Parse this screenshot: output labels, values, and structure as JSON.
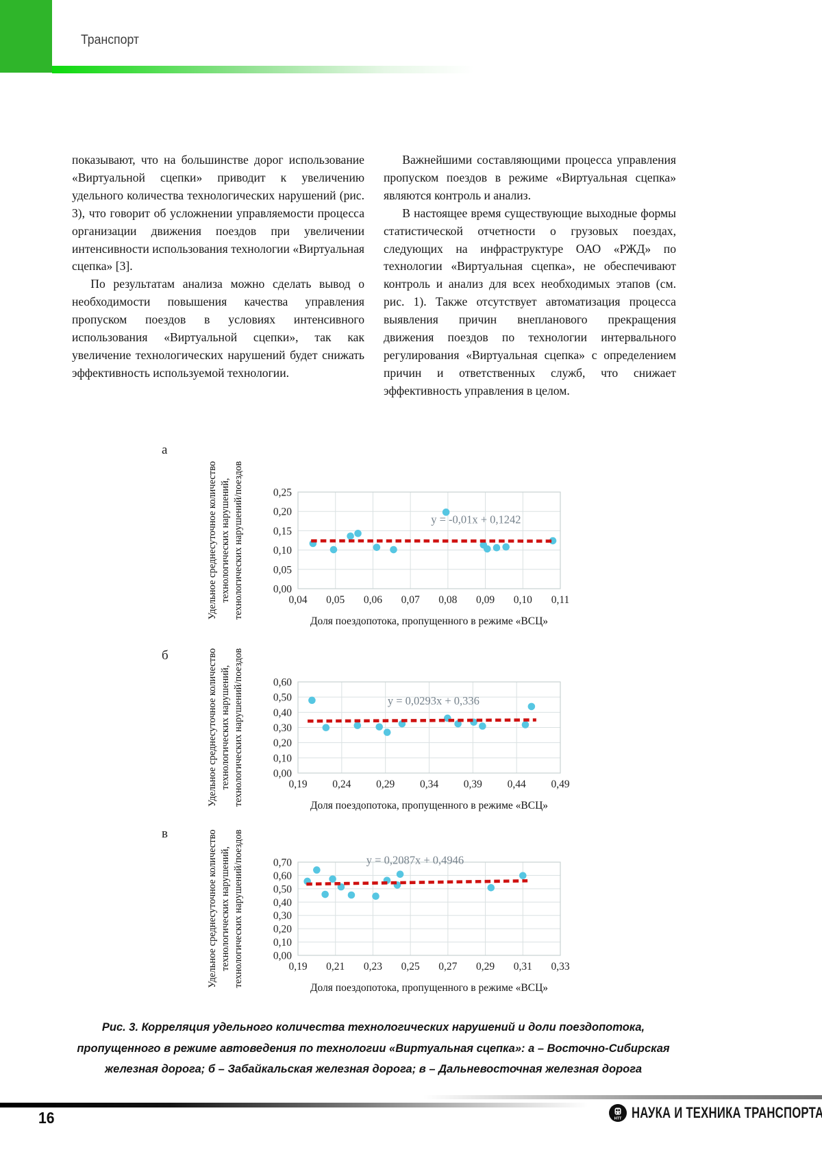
{
  "header": {
    "section_label": "Транспорт"
  },
  "article": {
    "left_paragraphs": [
      "показывают, что на большинстве дорог использование «Виртуальной сцепки» приводит к увеличению удельного количества технологических нарушений (рис. 3), что говорит об усложнении управляемости процесса организации движения поездов при увеличении интенсивности использования технологии «Виртуальная сцепка» [3].",
      "По результатам анализа можно сделать вывод о необходимости повышения качества управления пропуском поездов в условиях интенсивного использования «Виртуальной сцепки», так как увеличение технологических нарушений будет снижать эффективность используемой технологии."
    ],
    "right_paragraphs": [
      "Важнейшими составляющими процесса управления пропуском поездов в режиме «Виртуальная сцепка» являются контроль и анализ.",
      "В настоящее время существующие выходные формы статистической отчетности о грузовых поездах, следующих на инфраструктуре ОАО «РЖД» по технологии «Виртуальная сцепка», не обеспечивают контроль и анализ для всех необходимых этапов (см. рис. 1). Также отсутствует автоматизация процесса выявления причин внепланового прекращения движения поездов по технологии интервального регулирования «Виртуальная сцепка» с определением причин и ответственных служб, что снижает эффективность управления в целом."
    ]
  },
  "figure": {
    "caption": "Рис. 3. Корреляция удельного количества технологических нарушений и доли поездопотока, пропущенного в режиме автоведения по технологии «Виртуальная сцепка»: а – Восточно-Сибирская железная дорога; б – Забайкальская железная дорога; в – Дальневосточная железная дорога",
    "colors": {
      "point": "#56c6e2",
      "trend": "#cf1110",
      "grid": "#dae1e2",
      "border": "#c8d2d3",
      "equation_text": "#76828c",
      "tick_text": "#222222"
    }
  },
  "chart_data": [
    {
      "type": "scatter",
      "panel": "а",
      "equation": "y = -0,01x + 0,1242",
      "xlabel": "Доля поездопотока, пропущенного в режиме «ВСЦ»",
      "ylabel_lines": [
        "Удельное среднесуточное количество",
        "технологических нарушений,",
        "технологических нарушений/поездов"
      ],
      "xlim": [
        0.04,
        0.11
      ],
      "xtick_step": 0.01,
      "ylim": [
        0,
        0.25
      ],
      "ytick_step": 0.05,
      "points": [
        [
          0.044,
          0.117
        ],
        [
          0.0495,
          0.101
        ],
        [
          0.054,
          0.136
        ],
        [
          0.056,
          0.143
        ],
        [
          0.061,
          0.107
        ],
        [
          0.0655,
          0.101
        ],
        [
          0.0795,
          0.198
        ],
        [
          0.0895,
          0.113
        ],
        [
          0.0905,
          0.103
        ],
        [
          0.093,
          0.106
        ],
        [
          0.0955,
          0.108
        ],
        [
          0.108,
          0.124
        ]
      ],
      "trend": {
        "x": [
          0.0435,
          0.1085
        ],
        "y": [
          0.1238,
          0.1231
        ]
      },
      "equation_anchor": [
        0.0875,
        0.169
      ],
      "legend": "none",
      "grid": "on"
    },
    {
      "type": "scatter",
      "panel": "б",
      "equation": "y = 0,0293x + 0,336",
      "xlabel": "Доля поездопотока, пропущенного в режиме «ВСЦ»",
      "ylabel_lines": [
        "Удельное среднесуточное количество",
        "технологических нарушений,",
        "технологических нарушений/поездов"
      ],
      "xlim": [
        0.19,
        0.49
      ],
      "xtick_step": 0.05,
      "ylim": [
        0,
        0.6
      ],
      "ytick_step": 0.1,
      "points": [
        [
          0.206,
          0.479
        ],
        [
          0.222,
          0.299
        ],
        [
          0.258,
          0.313
        ],
        [
          0.283,
          0.304
        ],
        [
          0.292,
          0.268
        ],
        [
          0.309,
          0.324
        ],
        [
          0.361,
          0.361
        ],
        [
          0.373,
          0.324
        ],
        [
          0.391,
          0.335
        ],
        [
          0.401,
          0.309
        ],
        [
          0.45,
          0.318
        ],
        [
          0.457,
          0.438
        ]
      ],
      "trend": {
        "x": [
          0.201,
          0.4625
        ],
        "y": [
          0.3419,
          0.3496
        ]
      },
      "equation_anchor": [
        0.345,
        0.452
      ],
      "legend": "none",
      "grid": "on"
    },
    {
      "type": "scatter",
      "panel": "в",
      "equation": "y = 0,2087x + 0,4946",
      "xlabel": "Доля поездопотока, пропущенного в режиме «ВСЦ»",
      "ylabel_lines": [
        "Удельное среднесуточное количество",
        "технологических нарушений,",
        "технологических нарушений/поездов"
      ],
      "xlim": [
        0.19,
        0.33
      ],
      "xtick_step": 0.02,
      "ylim": [
        0,
        0.7
      ],
      "ytick_step": 0.1,
      "points": [
        [
          0.195,
          0.556
        ],
        [
          0.2,
          0.641
        ],
        [
          0.2045,
          0.458
        ],
        [
          0.2085,
          0.573
        ],
        [
          0.213,
          0.514
        ],
        [
          0.2185,
          0.453
        ],
        [
          0.2315,
          0.444
        ],
        [
          0.2375,
          0.563
        ],
        [
          0.243,
          0.528
        ],
        [
          0.2445,
          0.609
        ],
        [
          0.293,
          0.508
        ],
        [
          0.31,
          0.599
        ]
      ],
      "trend": {
        "x": [
          0.1945,
          0.3125
        ],
        "y": [
          0.5352,
          0.5598
        ]
      },
      "equation_anchor": [
        0.2525,
        0.688
      ],
      "legend": "none",
      "grid": "on"
    }
  ],
  "footer": {
    "page_number": "16",
    "journal_name": "НАУКА И ТЕХНИКА ТРАНСПОРТА",
    "logo_text": "НТТ"
  }
}
